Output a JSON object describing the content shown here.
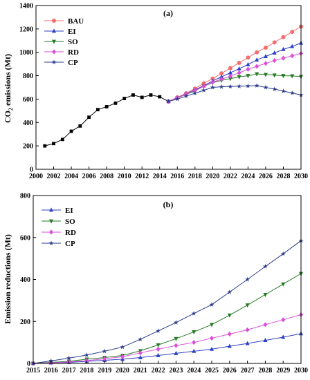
{
  "chart_data": [
    {
      "type": "line",
      "panel_label": "(a)",
      "xlabel": "",
      "ylabel_main": "CO",
      "ylabel_sub": "2",
      "ylabel_rest": " emissions (Mt)",
      "xlim": [
        2000,
        2030
      ],
      "ylim": [
        0,
        1400
      ],
      "xticks": [
        "2000",
        "2002",
        "2004",
        "2006",
        "2008",
        "2010",
        "2012",
        "2014",
        "2016",
        "2018",
        "2020",
        "2022",
        "2024",
        "2026",
        "2028",
        "2030"
      ],
      "yticks": [
        "0",
        "200",
        "400",
        "600",
        "800",
        "1000",
        "1200",
        "1400"
      ],
      "legend_position": "top-left",
      "historical": {
        "color": "#000000",
        "marker": "square",
        "x": [
          2001,
          2002,
          2003,
          2004,
          2005,
          2006,
          2007,
          2008,
          2009,
          2010,
          2011,
          2012,
          2013,
          2014,
          2015
        ],
        "y": [
          200,
          220,
          255,
          325,
          370,
          445,
          510,
          535,
          565,
          605,
          635,
          615,
          635,
          620,
          580
        ]
      },
      "series": [
        {
          "name": "BAU",
          "color": "#f46e6e",
          "marker": "circle",
          "x": [
            2015,
            2016,
            2017,
            2018,
            2019,
            2020,
            2021,
            2022,
            2023,
            2024,
            2025,
            2026,
            2027,
            2028,
            2029,
            2030
          ],
          "y": [
            580,
            615,
            650,
            690,
            735,
            775,
            820,
            865,
            910,
            955,
            1000,
            1040,
            1085,
            1130,
            1175,
            1220
          ]
        },
        {
          "name": "EI",
          "color": "#2b3fc6",
          "marker": "triangle-up",
          "x": [
            2015,
            2016,
            2017,
            2018,
            2019,
            2020,
            2021,
            2022,
            2023,
            2024,
            2025,
            2026,
            2027,
            2028,
            2029,
            2030
          ],
          "y": [
            580,
            612,
            645,
            680,
            715,
            755,
            790,
            825,
            860,
            895,
            935,
            965,
            995,
            1025,
            1050,
            1080
          ]
        },
        {
          "name": "SO",
          "color": "#237a23",
          "marker": "triangle-down",
          "x": [
            2015,
            2016,
            2017,
            2018,
            2019,
            2020,
            2021,
            2022,
            2023,
            2024,
            2025,
            2026,
            2027,
            2028,
            2029,
            2030
          ],
          "y": [
            580,
            610,
            640,
            670,
            710,
            740,
            760,
            775,
            790,
            800,
            815,
            810,
            805,
            800,
            798,
            792
          ]
        },
        {
          "name": "RD",
          "color": "#d94fd9",
          "marker": "diamond",
          "x": [
            2015,
            2016,
            2017,
            2018,
            2019,
            2020,
            2021,
            2022,
            2023,
            2024,
            2025,
            2026,
            2027,
            2028,
            2029,
            2030
          ],
          "y": [
            580,
            612,
            643,
            675,
            710,
            745,
            770,
            795,
            825,
            855,
            880,
            905,
            930,
            950,
            970,
            990
          ]
        },
        {
          "name": "CP",
          "color": "#2a3a8a",
          "marker": "star",
          "x": [
            2015,
            2016,
            2017,
            2018,
            2019,
            2020,
            2021,
            2022,
            2023,
            2024,
            2025,
            2026,
            2027,
            2028,
            2029,
            2030
          ],
          "y": [
            580,
            600,
            625,
            650,
            675,
            700,
            705,
            708,
            710,
            712,
            715,
            700,
            685,
            668,
            652,
            635
          ]
        }
      ]
    },
    {
      "type": "line",
      "panel_label": "(b)",
      "xlabel": "",
      "ylabel": "Emission reductions (Mt)",
      "xlim": [
        2015,
        2030
      ],
      "ylim": [
        0,
        800
      ],
      "xticks": [
        "2015",
        "2016",
        "2017",
        "2018",
        "2019",
        "2020",
        "2021",
        "2022",
        "2023",
        "2024",
        "2025",
        "2026",
        "2027",
        "2028",
        "2029",
        "2030"
      ],
      "yticks": [
        "0",
        "200",
        "400",
        "600",
        "800"
      ],
      "legend_position": "top-left",
      "series": [
        {
          "name": "EI",
          "color": "#2b3fc6",
          "marker": "triangle-up",
          "x": [
            2015,
            2016,
            2017,
            2018,
            2019,
            2020,
            2021,
            2022,
            2023,
            2024,
            2025,
            2026,
            2027,
            2028,
            2029,
            2030
          ],
          "y": [
            0,
            3,
            5,
            10,
            15,
            20,
            28,
            38,
            48,
            58,
            68,
            82,
            95,
            110,
            125,
            142
          ]
        },
        {
          "name": "SO",
          "color": "#237a23",
          "marker": "triangle-down",
          "x": [
            2015,
            2016,
            2017,
            2018,
            2019,
            2020,
            2021,
            2022,
            2023,
            2024,
            2025,
            2026,
            2027,
            2028,
            2029,
            2030
          ],
          "y": [
            0,
            5,
            10,
            20,
            28,
            38,
            60,
            88,
            118,
            150,
            185,
            230,
            278,
            328,
            378,
            428
          ]
        },
        {
          "name": "RD",
          "color": "#d94fd9",
          "marker": "diamond",
          "x": [
            2015,
            2016,
            2017,
            2018,
            2019,
            2020,
            2021,
            2022,
            2023,
            2024,
            2025,
            2026,
            2027,
            2028,
            2029,
            2030
          ],
          "y": [
            0,
            3,
            7,
            13,
            22,
            32,
            50,
            68,
            85,
            100,
            120,
            140,
            160,
            185,
            208,
            232
          ]
        },
        {
          "name": "CP",
          "color": "#2a3a8a",
          "marker": "star",
          "x": [
            2015,
            2016,
            2017,
            2018,
            2019,
            2020,
            2021,
            2022,
            2023,
            2024,
            2025,
            2026,
            2027,
            2028,
            2029,
            2030
          ],
          "y": [
            0,
            12,
            25,
            40,
            58,
            78,
            115,
            155,
            195,
            238,
            280,
            340,
            400,
            462,
            522,
            585
          ]
        }
      ]
    }
  ]
}
